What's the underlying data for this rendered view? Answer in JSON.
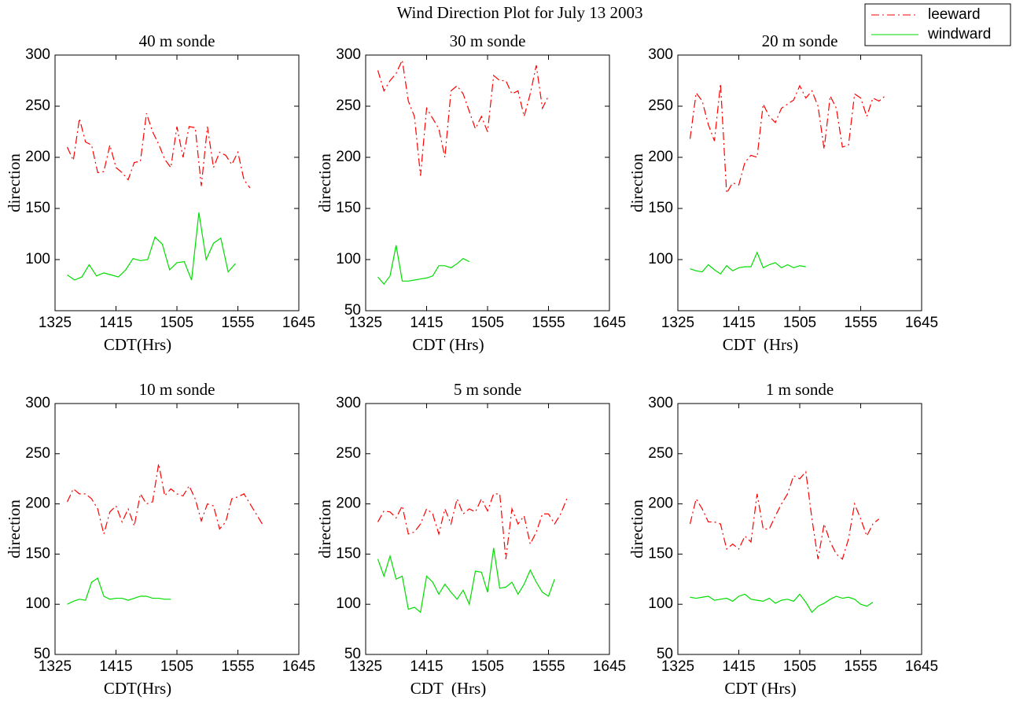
{
  "title": "Wind Direction Plot for July 13 2003",
  "chart_data": [
    {
      "type": "line",
      "title": "40 m sonde",
      "xlabel": "CDT(Hrs)",
      "ylabel": "direction",
      "xlim": [
        805,
        1005
      ],
      "xticks": [
        {
          "value": 805,
          "label": "1325"
        },
        {
          "value": 855,
          "label": "1415"
        },
        {
          "value": 905,
          "label": "1505"
        },
        {
          "value": 955,
          "label": "1555"
        },
        {
          "value": 1005,
          "label": "1645"
        }
      ],
      "ylim": [
        50,
        300
      ],
      "yticks": [
        100,
        150,
        200,
        250,
        300
      ],
      "series": [
        {
          "name": "leeward",
          "color": "#ff0000",
          "linestyle": "dashdot",
          "x": [
            815,
            820,
            825,
            830,
            835,
            840,
            845,
            850,
            855,
            860,
            865,
            870,
            875,
            880,
            885,
            890,
            895,
            900,
            905,
            910,
            915,
            920,
            925,
            930,
            935,
            940,
            945,
            950,
            955,
            960,
            965
          ],
          "values": [
            210,
            197,
            238,
            215,
            212,
            185,
            186,
            212,
            190,
            185,
            178,
            195,
            196,
            243,
            225,
            213,
            198,
            190,
            230,
            200,
            230,
            229,
            172,
            230,
            190,
            205,
            202,
            193,
            205,
            178,
            170
          ]
        },
        {
          "name": "windward",
          "color": "#00dd00",
          "linestyle": "solid",
          "x": [
            815,
            821,
            827,
            833,
            839,
            845,
            851,
            857,
            863,
            869,
            875,
            881,
            887,
            893,
            899,
            905,
            911,
            917,
            923,
            929,
            935,
            941,
            947,
            953
          ],
          "values": [
            85,
            80,
            83,
            95,
            84,
            87,
            85,
            83,
            90,
            101,
            99,
            100,
            122,
            115,
            90,
            97,
            98,
            80,
            146,
            100,
            116,
            121,
            88,
            96
          ]
        }
      ]
    },
    {
      "type": "line",
      "title": "30 m sonde",
      "xlabel": "CDT (Hrs)",
      "ylabel": "direction",
      "xlim": [
        805,
        1005
      ],
      "xticks": [
        {
          "value": 805,
          "label": "1325"
        },
        {
          "value": 855,
          "label": "1415"
        },
        {
          "value": 905,
          "label": "1505"
        },
        {
          "value": 955,
          "label": "1555"
        },
        {
          "value": 1005,
          "label": "1645"
        }
      ],
      "ylim": [
        50,
        300
      ],
      "yticks": [
        50,
        100,
        150,
        200,
        250,
        300
      ],
      "series": [
        {
          "color": "#ff0000",
          "linestyle": "dashdot",
          "x": [
            815,
            820,
            825,
            830,
            835,
            840,
            845,
            850,
            855,
            860,
            865,
            870,
            875,
            880,
            885,
            890,
            895,
            900,
            905,
            910,
            915,
            920,
            925,
            930,
            935,
            940,
            945,
            950,
            955
          ],
          "values": [
            285,
            265,
            275,
            282,
            295,
            255,
            240,
            182,
            248,
            238,
            228,
            200,
            265,
            270,
            262,
            245,
            228,
            240,
            225,
            280,
            275,
            275,
            262,
            265,
            240,
            262,
            290,
            248,
            260
          ]
        },
        {
          "color": "#00dd00",
          "linestyle": "solid",
          "x": [
            815,
            820,
            825,
            830,
            835,
            840,
            845,
            850,
            855,
            860,
            865,
            870,
            875,
            880,
            885,
            890
          ],
          "values": [
            83,
            76,
            84,
            114,
            79,
            79,
            80,
            81,
            82,
            84,
            94,
            94,
            92,
            96,
            101,
            98
          ]
        }
      ]
    },
    {
      "type": "line",
      "title": "20 m sonde",
      "xlabel": "CDT  (Hrs)",
      "ylabel": "direction",
      "xlim": [
        805,
        1005
      ],
      "xticks": [
        {
          "value": 805,
          "label": "1325"
        },
        {
          "value": 855,
          "label": "1415"
        },
        {
          "value": 905,
          "label": "1505"
        },
        {
          "value": 955,
          "label": "1555"
        },
        {
          "value": 1005,
          "label": "1645"
        }
      ],
      "ylim": [
        50,
        300
      ],
      "yticks": [
        100,
        150,
        200,
        250,
        300
      ],
      "series": [
        {
          "color": "#ff0000",
          "linestyle": "dashdot",
          "x": [
            815,
            820,
            825,
            830,
            835,
            840,
            845,
            850,
            855,
            860,
            865,
            870,
            875,
            880,
            885,
            890,
            895,
            900,
            905,
            910,
            915,
            920,
            925,
            930,
            935,
            940,
            945,
            950,
            955,
            960,
            965,
            970,
            975
          ],
          "values": [
            218,
            263,
            255,
            232,
            216,
            272,
            165,
            175,
            173,
            195,
            202,
            200,
            252,
            240,
            234,
            248,
            252,
            256,
            270,
            258,
            265,
            250,
            208,
            260,
            248,
            210,
            212,
            262,
            258,
            240,
            258,
            255,
            260
          ]
        },
        {
          "color": "#00dd00",
          "linestyle": "solid",
          "x": [
            815,
            820,
            825,
            830,
            835,
            840,
            845,
            850,
            855,
            860,
            865,
            870,
            875,
            880,
            885,
            890,
            895,
            900,
            905,
            910
          ],
          "values": [
            91,
            89,
            88,
            95,
            90,
            86,
            94,
            89,
            92,
            93,
            93,
            107,
            92,
            95,
            97,
            92,
            95,
            92,
            94,
            93
          ]
        }
      ]
    },
    {
      "type": "line",
      "title": "10 m sonde",
      "xlabel": "CDT(Hrs)",
      "ylabel": "direction",
      "xlim": [
        805,
        1005
      ],
      "xticks": [
        {
          "value": 805,
          "label": "1325"
        },
        {
          "value": 855,
          "label": "1415"
        },
        {
          "value": 905,
          "label": "1505"
        },
        {
          "value": 955,
          "label": "1555"
        },
        {
          "value": 1005,
          "label": "1645"
        }
      ],
      "ylim": [
        50,
        300
      ],
      "yticks": [
        50,
        100,
        150,
        200,
        250,
        300
      ],
      "series": [
        {
          "color": "#ff0000",
          "linestyle": "dashdot",
          "x": [
            815,
            820,
            825,
            830,
            835,
            840,
            845,
            850,
            855,
            860,
            865,
            870,
            875,
            880,
            885,
            890,
            895,
            900,
            905,
            910,
            915,
            920,
            925,
            930,
            935,
            940,
            945,
            950,
            955,
            960,
            965,
            970,
            975
          ],
          "values": [
            202,
            215,
            210,
            210,
            205,
            195,
            170,
            192,
            198,
            182,
            195,
            178,
            210,
            200,
            202,
            240,
            208,
            215,
            210,
            208,
            218,
            205,
            183,
            200,
            198,
            175,
            182,
            205,
            207,
            210,
            200,
            190,
            180
          ]
        },
        {
          "color": "#00dd00",
          "linestyle": "solid",
          "x": [
            815,
            820,
            825,
            830,
            835,
            840,
            845,
            850,
            855,
            860,
            865,
            870,
            875,
            880,
            885,
            890,
            895,
            900
          ],
          "values": [
            100,
            103,
            105,
            104,
            122,
            126,
            108,
            105,
            106,
            106,
            104,
            106,
            108,
            108,
            106,
            106,
            105,
            105
          ]
        }
      ]
    },
    {
      "type": "line",
      "title": "5 m sonde",
      "xlabel": "CDT  (Hrs)",
      "ylabel": "direction",
      "xlim": [
        805,
        1005
      ],
      "xticks": [
        {
          "value": 805,
          "label": "1325"
        },
        {
          "value": 855,
          "label": "1415"
        },
        {
          "value": 905,
          "label": "1505"
        },
        {
          "value": 955,
          "label": "1555"
        },
        {
          "value": 1005,
          "label": "1645"
        }
      ],
      "ylim": [
        50,
        300
      ],
      "yticks": [
        50,
        100,
        150,
        200,
        250,
        300
      ],
      "series": [
        {
          "color": "#ff0000",
          "linestyle": "dashdot",
          "x": [
            815,
            820,
            825,
            830,
            835,
            840,
            845,
            850,
            855,
            860,
            865,
            870,
            875,
            880,
            885,
            890,
            895,
            900,
            905,
            910,
            915,
            920,
            925,
            930,
            935,
            940,
            945,
            950,
            955,
            960,
            965,
            970
          ],
          "values": [
            182,
            193,
            192,
            186,
            198,
            170,
            172,
            180,
            195,
            190,
            170,
            195,
            180,
            205,
            190,
            195,
            192,
            205,
            193,
            210,
            210,
            145,
            195,
            180,
            188,
            160,
            172,
            190,
            190,
            180,
            190,
            205
          ]
        },
        {
          "color": "#00dd00",
          "linestyle": "solid",
          "x": [
            815,
            820,
            825,
            830,
            835,
            840,
            845,
            850,
            855,
            860,
            865,
            870,
            875,
            880,
            885,
            890,
            895,
            900,
            905,
            910,
            915,
            920,
            925,
            930,
            935,
            940,
            945,
            950,
            955,
            960
          ],
          "values": [
            145,
            128,
            148,
            125,
            128,
            95,
            97,
            92,
            128,
            122,
            110,
            120,
            112,
            105,
            114,
            100,
            133,
            132,
            112,
            156,
            116,
            117,
            122,
            110,
            120,
            134,
            122,
            112,
            108,
            125
          ]
        }
      ]
    },
    {
      "type": "line",
      "title": "1 m sonde",
      "xlabel": "CDT (Hrs)",
      "ylabel": "direction",
      "xlim": [
        805,
        1005
      ],
      "xticks": [
        {
          "value": 805,
          "label": "1325"
        },
        {
          "value": 855,
          "label": "1415"
        },
        {
          "value": 905,
          "label": "1505"
        },
        {
          "value": 955,
          "label": "1555"
        },
        {
          "value": 1005,
          "label": "1645"
        }
      ],
      "ylim": [
        50,
        300
      ],
      "yticks": [
        50,
        100,
        150,
        200,
        250,
        300
      ],
      "series": [
        {
          "color": "#ff0000",
          "linestyle": "dashdot",
          "x": [
            815,
            820,
            825,
            830,
            835,
            840,
            845,
            850,
            855,
            860,
            865,
            870,
            875,
            880,
            885,
            890,
            895,
            900,
            905,
            910,
            915,
            920,
            925,
            930,
            935,
            940,
            945,
            950,
            955,
            960,
            965,
            970
          ],
          "values": [
            180,
            205,
            195,
            182,
            182,
            180,
            155,
            160,
            155,
            168,
            162,
            210,
            175,
            175,
            188,
            200,
            210,
            228,
            225,
            232,
            185,
            145,
            180,
            162,
            150,
            145,
            165,
            200,
            185,
            168,
            180,
            185
          ]
        },
        {
          "color": "#00dd00",
          "linestyle": "solid",
          "x": [
            815,
            820,
            825,
            830,
            835,
            840,
            845,
            850,
            855,
            860,
            865,
            870,
            875,
            880,
            885,
            890,
            895,
            900,
            905,
            910,
            915,
            920,
            925,
            930,
            935,
            940,
            945,
            950,
            955,
            960,
            965
          ],
          "values": [
            107,
            106,
            107,
            108,
            104,
            105,
            106,
            103,
            108,
            110,
            105,
            104,
            103,
            106,
            101,
            104,
            105,
            103,
            110,
            102,
            92,
            98,
            101,
            105,
            108,
            106,
            107,
            105,
            100,
            98,
            102
          ]
        }
      ]
    }
  ]
}
